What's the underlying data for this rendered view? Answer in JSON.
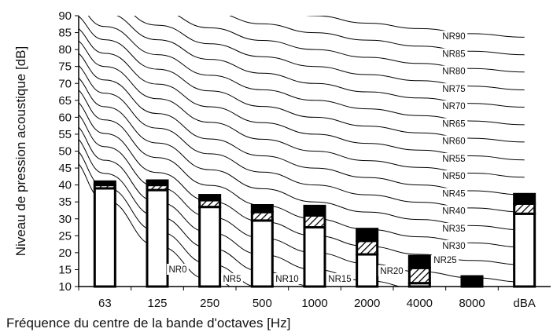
{
  "chart_data": {
    "type": "bar",
    "title": "",
    "xlabel": "Fréquence du centre de la bande d'octaves [Hz]",
    "ylabel": "Niveau de pression acoustique [dB]",
    "ylim": [
      10,
      90
    ],
    "yticks": [
      10,
      15,
      20,
      25,
      30,
      35,
      40,
      45,
      50,
      55,
      60,
      65,
      70,
      75,
      80,
      85,
      90
    ],
    "grid": false,
    "legend": "none",
    "categories": [
      "63",
      "125",
      "250",
      "500",
      "1000",
      "2000",
      "4000",
      "8000",
      "dBA"
    ],
    "bars": [
      {
        "open": 39.0,
        "hatch_top": 40.0,
        "solid_top": 41.0
      },
      {
        "open": 38.5,
        "hatch_top": 40.0,
        "solid_top": 41.3
      },
      {
        "open": 33.5,
        "hatch_top": 35.5,
        "solid_top": 37.0
      },
      {
        "open": 29.5,
        "hatch_top": 32.0,
        "solid_top": 34.0
      },
      {
        "open": 27.5,
        "hatch_top": 31.0,
        "solid_top": 33.8
      },
      {
        "open": 19.5,
        "hatch_top": 23.5,
        "solid_top": 27.0
      },
      {
        "open": 11.0,
        "hatch_top": 15.5,
        "solid_top": 19.0
      },
      {
        "open": 10.0,
        "hatch_top": 10.0,
        "solid_top": 13.0
      },
      {
        "open": 31.5,
        "hatch_top": 34.5,
        "solid_top": 37.3
      }
    ],
    "nr_curves": [
      {
        "label": "NR0",
        "values": [
          35.5,
          22.0,
          12.0,
          4.8,
          0.0,
          -3.5,
          -6.1,
          -8.0
        ]
      },
      {
        "label": "NR5",
        "values": [
          39.4,
          26.3,
          16.6,
          9.7,
          5.0,
          1.6,
          -1.0,
          -2.8
        ]
      },
      {
        "label": "NR10",
        "values": [
          43.4,
          30.7,
          21.3,
          14.5,
          10.0,
          6.6,
          4.2,
          2.3
        ]
      },
      {
        "label": "NR15",
        "values": [
          47.3,
          35.0,
          25.9,
          19.4,
          15.0,
          11.7,
          9.3,
          7.4
        ]
      },
      {
        "label": "NR20",
        "values": [
          51.3,
          39.4,
          30.6,
          24.3,
          20.0,
          16.8,
          14.4,
          12.6
        ]
      },
      {
        "label": "NR25",
        "values": [
          55.2,
          43.7,
          35.2,
          29.2,
          25.0,
          21.9,
          19.5,
          17.7
        ]
      },
      {
        "label": "NR30",
        "values": [
          59.2,
          48.1,
          39.9,
          34.0,
          30.0,
          26.9,
          24.7,
          22.9
        ]
      },
      {
        "label": "NR35",
        "values": [
          63.1,
          52.4,
          44.5,
          38.9,
          35.0,
          32.0,
          29.8,
          28.0
        ]
      },
      {
        "label": "NR40",
        "values": [
          67.1,
          56.8,
          49.2,
          43.8,
          40.0,
          37.1,
          34.9,
          33.2
        ]
      },
      {
        "label": "NR45",
        "values": [
          71.0,
          61.1,
          53.6,
          48.6,
          45.0,
          42.2,
          40.0,
          38.3
        ]
      },
      {
        "label": "NR50",
        "values": [
          75.0,
          65.5,
          58.5,
          53.5,
          50.0,
          47.2,
          45.2,
          43.5
        ]
      },
      {
        "label": "NR55",
        "values": [
          78.9,
          69.8,
          63.1,
          58.4,
          55.0,
          52.3,
          50.3,
          48.6
        ]
      },
      {
        "label": "NR60",
        "values": [
          82.9,
          74.2,
          67.8,
          63.2,
          60.0,
          57.4,
          55.4,
          53.8
        ]
      },
      {
        "label": "NR65",
        "values": [
          86.8,
          78.5,
          72.4,
          68.1,
          65.0,
          62.5,
          60.5,
          58.9
        ]
      },
      {
        "label": "NR70",
        "values": [
          90.8,
          82.9,
          77.1,
          73.0,
          70.0,
          67.5,
          65.7,
          64.1
        ]
      },
      {
        "label": "NR75",
        "values": [
          94.7,
          87.2,
          81.7,
          77.9,
          75.0,
          72.6,
          70.8,
          69.2
        ]
      },
      {
        "label": "NR80",
        "values": [
          98.7,
          91.6,
          86.4,
          82.7,
          80.0,
          77.7,
          75.9,
          74.4
        ]
      },
      {
        "label": "NR85",
        "values": [
          102.6,
          95.9,
          91.0,
          87.6,
          85.0,
          82.8,
          81.0,
          79.5
        ]
      },
      {
        "label": "NR90",
        "values": [
          106.6,
          100.3,
          95.7,
          92.5,
          90.0,
          87.8,
          86.2,
          84.7
        ]
      }
    ]
  }
}
